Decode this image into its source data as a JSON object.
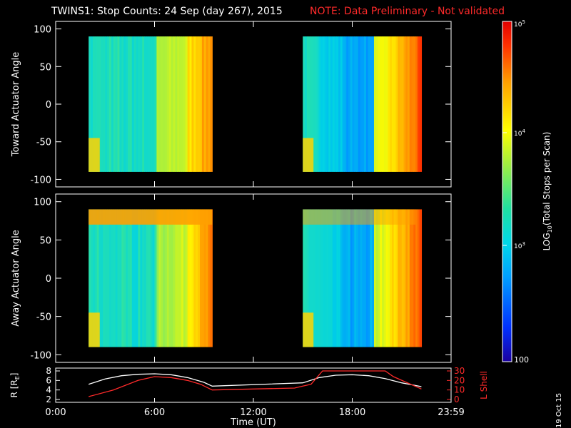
{
  "title": {
    "main": "TWINS1: Stop Counts: 24 Sep (day 267), 2015",
    "note": "NOTE: Data Preliminary - Not validated"
  },
  "date_stamp": "19 Oct 15",
  "colors": {
    "background": "#000000",
    "axes": "#ffffff",
    "note": "#ff2a2a",
    "r_line": "#ffffff",
    "lshell_line": "#ff2a2a"
  },
  "chart_data": [
    {
      "type": "heatmap",
      "id": "toward",
      "ylabel": "Toward Actuator Angle",
      "ylim": [
        -110,
        110
      ],
      "yticks": [
        100,
        50,
        0,
        -50,
        -100
      ],
      "xlim": [
        0,
        24
      ],
      "data_blocks": [
        {
          "x": [
            2.0,
            9.5
          ],
          "y": [
            -90,
            90
          ]
        },
        {
          "x": [
            15.0,
            22.2
          ],
          "y": [
            -90,
            90
          ]
        }
      ],
      "colorscale": "log",
      "description_levels": [
        "100",
        "1e3",
        "1e4",
        "1e5"
      ]
    },
    {
      "type": "heatmap",
      "id": "away",
      "ylabel": "Away Actuator Angle",
      "ylim": [
        -110,
        110
      ],
      "yticks": [
        100,
        50,
        0,
        -50,
        -100
      ],
      "xlim": [
        0,
        24
      ],
      "data_blocks": [
        {
          "x": [
            2.0,
            9.5
          ],
          "y": [
            -90,
            90
          ]
        },
        {
          "x": [
            15.0,
            22.2
          ],
          "y": [
            -90,
            90
          ]
        }
      ],
      "colorscale": "log"
    },
    {
      "type": "line",
      "id": "ephemeris",
      "ylabel": "R [R",
      "ylabel_sub": "E",
      "ylabel_end": "]",
      "ylim": [
        2,
        8
      ],
      "yticks": [
        8,
        6,
        4,
        2
      ],
      "y2label": "L Shell",
      "y2lim": [
        0,
        30
      ],
      "y2ticks": [
        30,
        20,
        10,
        0
      ],
      "xlabel": "Time (UT)",
      "xlim": [
        0,
        24
      ],
      "xticks": [
        "0:00",
        "6:00",
        "12:00",
        "18:00",
        "23:59"
      ],
      "xtick_values": [
        0,
        6,
        12,
        18,
        24
      ],
      "series": [
        {
          "axis": "left",
          "x": [
            2.0,
            3.0,
            4.0,
            5.0,
            6.0,
            7.0,
            8.0,
            9.0,
            9.5,
            15.0,
            16.0,
            17.0,
            18.0,
            19.0,
            20.0,
            21.0,
            22.2
          ],
          "y": [
            5.2,
            6.3,
            7.0,
            7.3,
            7.4,
            7.2,
            6.6,
            5.6,
            4.8,
            5.5,
            6.6,
            7.1,
            7.2,
            7.0,
            6.4,
            5.5,
            4.7
          ]
        },
        {
          "axis": "right",
          "x": [
            2.0,
            3.5,
            5.0,
            6.0,
            7.0,
            8.0,
            8.8,
            9.5,
            12.0,
            14.5,
            15.0,
            15.5,
            16.2,
            20.0,
            20.5,
            22.2
          ],
          "y": [
            3,
            10,
            20,
            24,
            23,
            20,
            16,
            10,
            11,
            12,
            14,
            16,
            30,
            30,
            24,
            11
          ]
        }
      ]
    }
  ],
  "colorbar": {
    "label": "LOG",
    "label_sub": "10",
    "label_rest": "(Total Stops per Scan)",
    "top_label": "10",
    "top_exp": "5",
    "mid_label": "10",
    "mid_exp": "4",
    "low_label": "10",
    "low_exp": "3",
    "bottom_label": "100"
  }
}
